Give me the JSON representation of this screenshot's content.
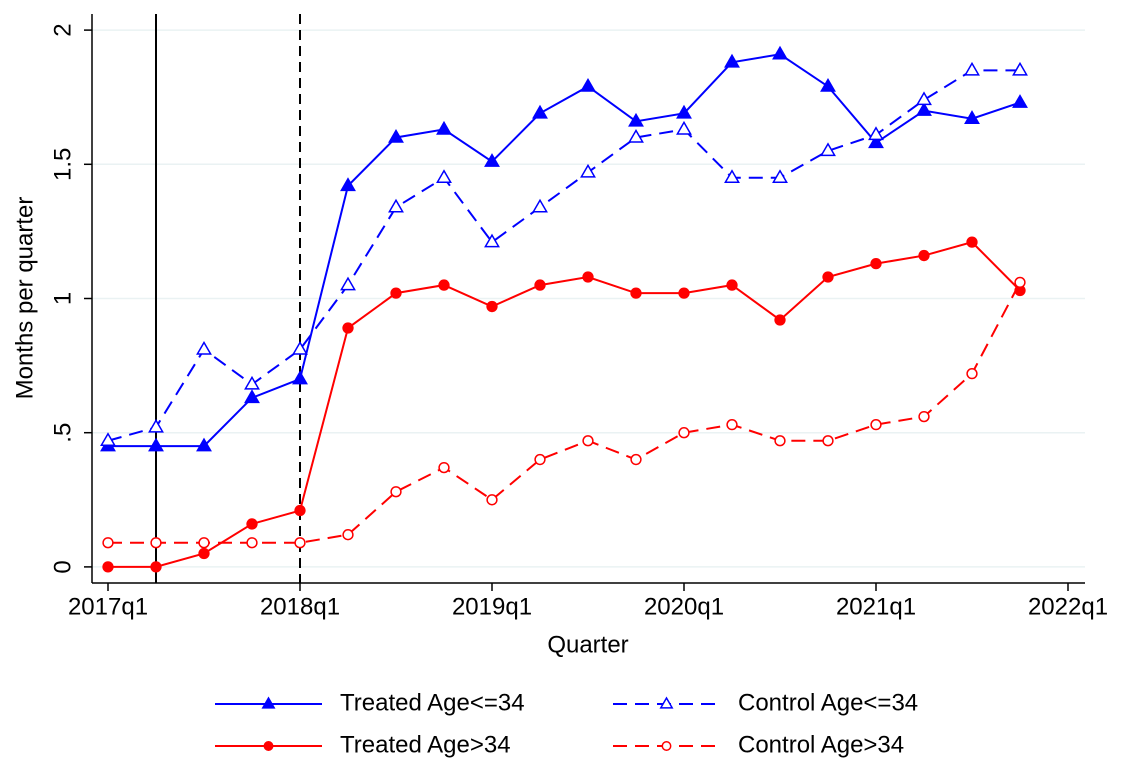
{
  "chart_data": {
    "type": "line",
    "x_label": "Quarter",
    "y_label": "Months per quarter",
    "x": [
      "2017q1",
      "2017q2",
      "2017q3",
      "2017q4",
      "2018q1",
      "2018q2",
      "2018q3",
      "2018q4",
      "2019q1",
      "2019q2",
      "2019q3",
      "2019q4",
      "2020q1",
      "2020q2",
      "2020q3",
      "2020q4",
      "2021q1",
      "2021q2",
      "2021q3",
      "2021q4"
    ],
    "series": [
      {
        "name": "Treated Age<=34",
        "color": "#0000ff",
        "dash": "solid",
        "marker": "triangle",
        "filled": true,
        "values": [
          0.45,
          0.45,
          0.45,
          0.63,
          0.7,
          1.42,
          1.6,
          1.63,
          1.51,
          1.69,
          1.79,
          1.66,
          1.69,
          1.88,
          1.91,
          1.79,
          1.58,
          1.7,
          1.67,
          1.73
        ]
      },
      {
        "name": "Control Age<=34",
        "color": "#0000ff",
        "dash": "dashed",
        "marker": "triangle",
        "filled": false,
        "values": [
          0.47,
          0.52,
          0.81,
          0.68,
          0.81,
          1.05,
          1.34,
          1.45,
          1.21,
          1.34,
          1.47,
          1.6,
          1.63,
          1.45,
          1.45,
          1.55,
          1.61,
          1.74,
          1.85,
          1.85
        ]
      },
      {
        "name": "Treated Age>34",
        "color": "#ff0000",
        "dash": "solid",
        "marker": "circle",
        "filled": true,
        "values": [
          0,
          0,
          0.05,
          0.16,
          0.21,
          0.89,
          1.02,
          1.05,
          0.97,
          1.05,
          1.08,
          1.02,
          1.02,
          1.05,
          0.92,
          1.08,
          1.13,
          1.16,
          1.21,
          1.03
        ]
      },
      {
        "name": "Control Age>34",
        "color": "#ff0000",
        "dash": "dashed",
        "marker": "circle",
        "filled": false,
        "values": [
          0.09,
          0.09,
          0.09,
          0.09,
          0.09,
          0.12,
          0.28,
          0.37,
          0.25,
          0.4,
          0.47,
          0.4,
          0.5,
          0.53,
          0.47,
          0.47,
          0.53,
          0.56,
          0.72,
          1.06
        ]
      }
    ],
    "xlim": [
      "2017q1",
      "2022q1"
    ],
    "xticks": [
      "2017q1",
      "2018q1",
      "2019q1",
      "2020q1",
      "2021q1",
      "2022q1"
    ],
    "ylim": [
      -0.06,
      2.06
    ],
    "yticks": [
      0,
      {
        "value": 0.5,
        "label": ".5"
      },
      1,
      1.5,
      2
    ],
    "grid": true,
    "vlines": [
      {
        "x": "2017q2",
        "dash": "solid"
      },
      {
        "x": "2018q1",
        "dash": "dashed"
      }
    ],
    "legend": "bottom"
  }
}
